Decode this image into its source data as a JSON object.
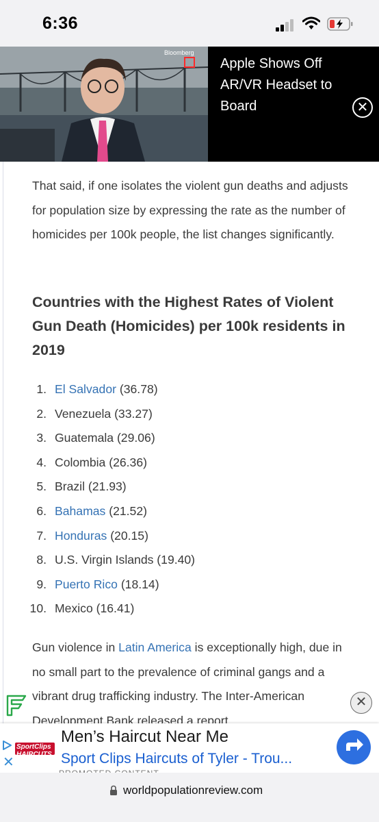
{
  "status_bar": {
    "time": "6:36"
  },
  "video": {
    "brand": "Bloomberg",
    "title": "Apple Shows Off AR/VR Headset to Board",
    "close_glyph": "✕"
  },
  "article": {
    "intro": "That said, if one isolates the violent gun deaths and adjusts for population size by expressing the rate as the number of homicides per 100k people, the list changes significantly.",
    "heading": "Countries with the Highest Rates of Violent Gun Death (Homicides) per 100k residents in 2019",
    "ranking": [
      {
        "num": "1.",
        "country": "El Salvador",
        "value": "(36.78)",
        "is_link": true
      },
      {
        "num": "2.",
        "country": "Venezuela",
        "value": "(33.27)",
        "is_link": false
      },
      {
        "num": "3.",
        "country": "Guatemala",
        "value": "(29.06)",
        "is_link": false
      },
      {
        "num": "4.",
        "country": "Colombia",
        "value": "(26.36)",
        "is_link": false
      },
      {
        "num": "5.",
        "country": "Brazil",
        "value": "(21.93)",
        "is_link": false
      },
      {
        "num": "6.",
        "country": "Bahamas",
        "value": "(21.52)",
        "is_link": true
      },
      {
        "num": "7.",
        "country": "Honduras",
        "value": "(20.15)",
        "is_link": true
      },
      {
        "num": "8.",
        "country": "U.S. Virgin Islands",
        "value": "(19.40)",
        "is_link": false
      },
      {
        "num": "9.",
        "country": "Puerto Rico",
        "value": "(18.14)",
        "is_link": true
      },
      {
        "num": "10.",
        "country": "Mexico",
        "value": "(16.41)",
        "is_link": false
      }
    ],
    "closing": {
      "before_link": "Gun violence in ",
      "link": "Latin America",
      "after_link": " is exceptionally high, due in no small part to the prevalence of criminal gangs and a vibrant drug trafficking industry. The Inter-American Development Bank released a report"
    },
    "corner_close_glyph": "✕"
  },
  "ad": {
    "advertiser": "SportClips HAIRCUTS",
    "title": "Men’s Haircut Near Me",
    "subtitle": "Sport Clips Haircuts of Tyler - Trou...",
    "close_glyph": "✕",
    "bleed_text": "PROMOTED CONTENT",
    "accent": "#2d6fe0"
  },
  "url_bar": {
    "url": "worldpopulationreview.com"
  },
  "colors": {
    "link": "#3472b4",
    "text": "#3a3a3a"
  }
}
